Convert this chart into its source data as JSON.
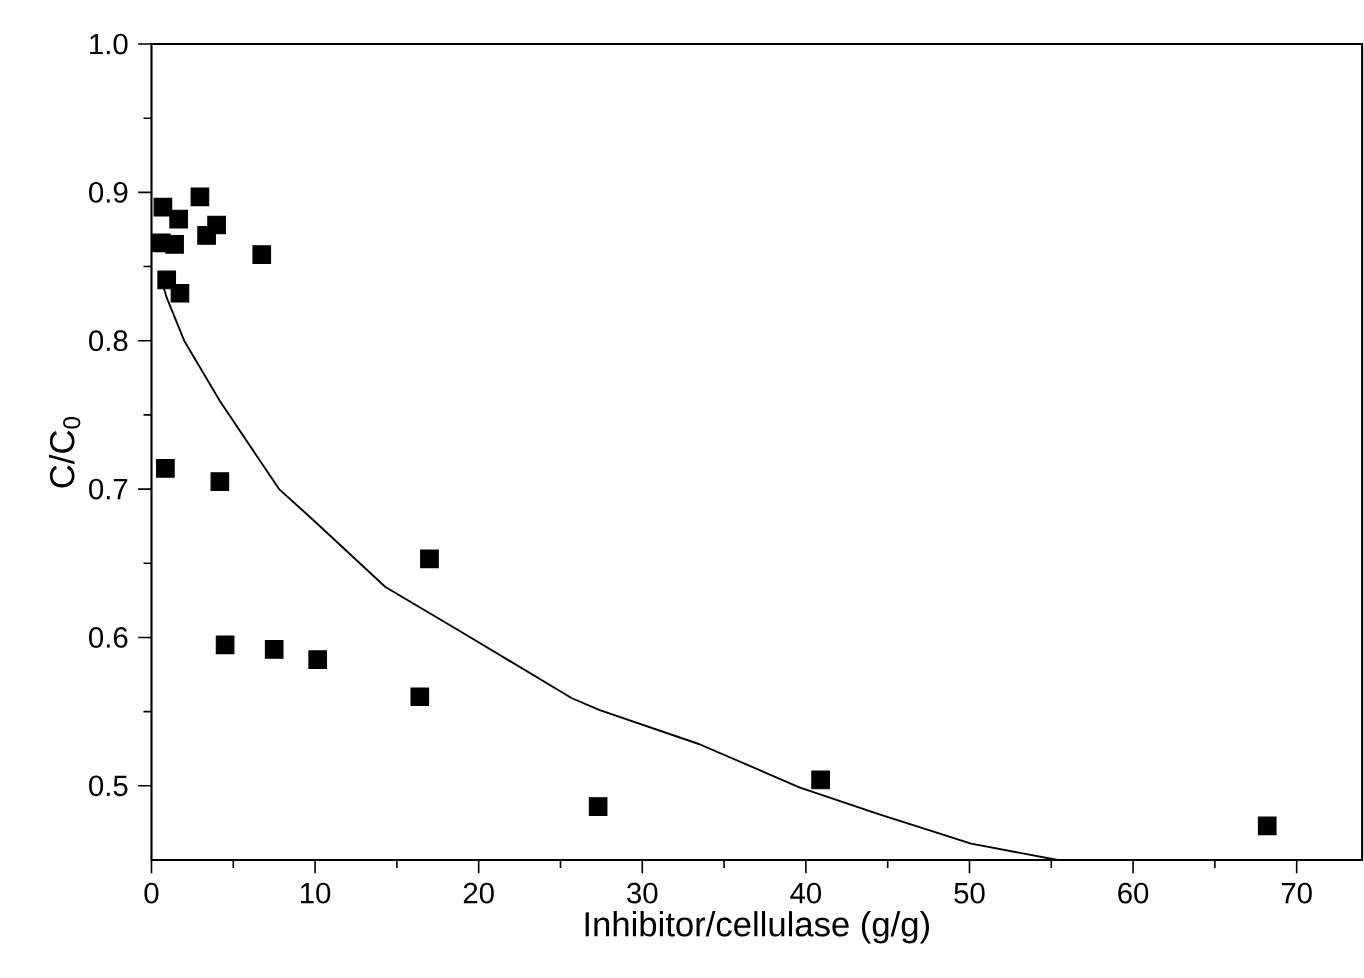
{
  "chart_data": {
    "type": "scatter",
    "xlabel": "Inhibitor/cellulase (g/g)",
    "ylabel": "C/C$_{0}$",
    "xlim": [
      0,
      74
    ],
    "ylim": [
      0.45,
      1.0
    ],
    "xticks": [
      0,
      10,
      20,
      30,
      40,
      50,
      60,
      70
    ],
    "yticks": [
      0.5,
      0.6,
      0.7,
      0.8,
      0.9,
      {
        "value": 1.0,
        "label": "1.0"
      }
    ],
    "series": [
      {
        "marker": "square",
        "color": "#000000",
        "x": [
          0.7,
          1.66,
          2.96,
          0.6,
          1.41,
          3.98,
          3.37,
          6.74,
          0.93,
          1.74,
          0.85,
          4.18,
          16.99,
          4.5,
          7.5,
          10.16,
          16.4,
          27.3,
          40.9,
          68.2
        ],
        "values": [
          0.89,
          0.882,
          0.897,
          0.866,
          0.865,
          0.878,
          0.871,
          0.858,
          0.841,
          0.832,
          0.714,
          0.705,
          0.653,
          0.595,
          0.592,
          0.585,
          0.56,
          0.486,
          0.504,
          0.473
        ]
      },
      {
        "type": "line",
        "marker": "none",
        "line_style": "solid",
        "color": "#000000",
        "x": [
          0.5,
          0.93,
          2.0,
          4.2,
          7.8,
          9.9,
          14.3,
          19.2,
          25.7,
          27.4,
          33.5,
          39.6,
          44.4,
          50.1,
          55.4
        ],
        "values": [
          0.845,
          0.829,
          0.8,
          0.759,
          0.7,
          0.679,
          0.634,
          0.602,
          0.559,
          0.551,
          0.528,
          0.499,
          0.481,
          0.461,
          0.45
        ]
      }
    ]
  }
}
